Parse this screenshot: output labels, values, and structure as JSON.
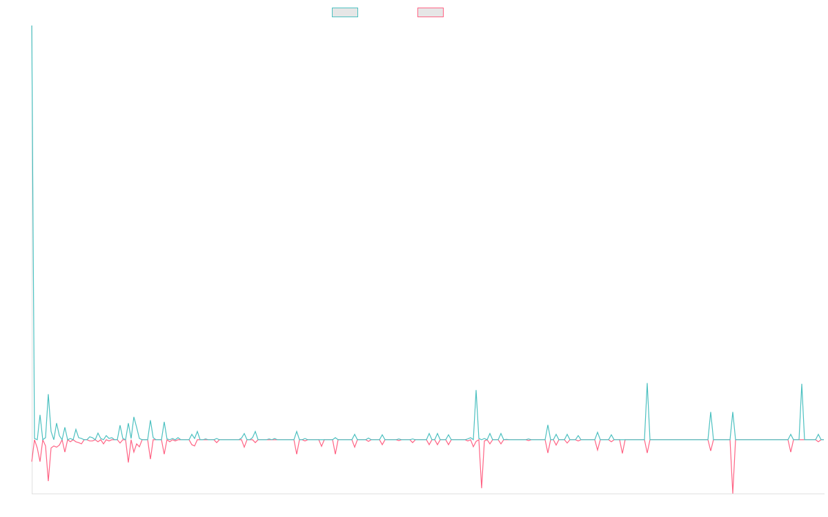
{
  "chart_data": {
    "type": "line",
    "title": "",
    "xlabel": "",
    "ylabel": "",
    "n_points": 288,
    "xlim": [
      0,
      287
    ],
    "ylim": [
      -13,
      100
    ],
    "grid": false,
    "legend_placement": "top-center",
    "series": [
      {
        "name": "",
        "color": "#4bc0c0",
        "points": [
          [
            0,
            100
          ],
          [
            1,
            0.3
          ],
          [
            3,
            6
          ],
          [
            5,
            0.5
          ],
          [
            6,
            11
          ],
          [
            7,
            2
          ],
          [
            9,
            4
          ],
          [
            10,
            1
          ],
          [
            12,
            3
          ],
          [
            14,
            0.3
          ],
          [
            16,
            2.5
          ],
          [
            17,
            0.5
          ],
          [
            18,
            0.3
          ],
          [
            21,
            0.7
          ],
          [
            22,
            0.5
          ],
          [
            24,
            1.6
          ],
          [
            25,
            0.3
          ],
          [
            27,
            1
          ],
          [
            28,
            0.3
          ],
          [
            29,
            0.5
          ],
          [
            32,
            3.5
          ],
          [
            33,
            0.3
          ],
          [
            35,
            4
          ],
          [
            36,
            0.3
          ],
          [
            37,
            5.5
          ],
          [
            38,
            3
          ],
          [
            39,
            0.3
          ],
          [
            43,
            4.7
          ],
          [
            44,
            0.5
          ],
          [
            48,
            4.3
          ],
          [
            49,
            0.2
          ],
          [
            51,
            0.3
          ],
          [
            53,
            0.5
          ],
          [
            58,
            1.3
          ],
          [
            59,
            0.3
          ],
          [
            60,
            2
          ],
          [
            63,
            0.2
          ],
          [
            67,
            0.3
          ],
          [
            76,
            0.4
          ],
          [
            77,
            1.5
          ],
          [
            80,
            0.5
          ],
          [
            81,
            2
          ],
          [
            86,
            0.2
          ],
          [
            88,
            0.3
          ],
          [
            96,
            2
          ],
          [
            99,
            0.3
          ],
          [
            110,
            0.5
          ],
          [
            117,
            1.3
          ],
          [
            122,
            0.4
          ],
          [
            127,
            1.2
          ],
          [
            133,
            0.2
          ],
          [
            138,
            0.2
          ],
          [
            144,
            1.5
          ],
          [
            147,
            1.5
          ],
          [
            151,
            1.2
          ],
          [
            158,
            0.2
          ],
          [
            159,
            0.5
          ],
          [
            161,
            12
          ],
          [
            162,
            0.3
          ],
          [
            164,
            0.3
          ],
          [
            166,
            1.5
          ],
          [
            170,
            1.5
          ],
          [
            172,
            0.1
          ],
          [
            180,
            0.2
          ],
          [
            187,
            3.6
          ],
          [
            190,
            1.3
          ],
          [
            194,
            1.3
          ],
          [
            198,
            1
          ],
          [
            205,
            1.8
          ],
          [
            210,
            1.2
          ],
          [
            223,
            13.7
          ],
          [
            246,
            6.7
          ],
          [
            254,
            6.7
          ],
          [
            275,
            1.3
          ],
          [
            279,
            13.5
          ],
          [
            285,
            1.3
          ]
        ]
      },
      {
        "name": "",
        "color": "#ff6384",
        "points": [
          [
            0,
            -5.3
          ],
          [
            2,
            -2
          ],
          [
            3,
            -5.3
          ],
          [
            5,
            -1.5
          ],
          [
            6,
            -10
          ],
          [
            7,
            -2
          ],
          [
            8,
            -1.5
          ],
          [
            9,
            -1.8
          ],
          [
            10,
            -1.3
          ],
          [
            12,
            -3
          ],
          [
            14,
            -0.5
          ],
          [
            16,
            -0.5
          ],
          [
            17,
            -0.7
          ],
          [
            18,
            -1
          ],
          [
            21,
            -0.3
          ],
          [
            22,
            -0.3
          ],
          [
            24,
            -0.5
          ],
          [
            26,
            -1
          ],
          [
            28,
            -0.3
          ],
          [
            32,
            -0.8
          ],
          [
            35,
            -5.5
          ],
          [
            37,
            -3
          ],
          [
            38,
            -1
          ],
          [
            39,
            -1.7
          ],
          [
            43,
            -4.7
          ],
          [
            48,
            -3.5
          ],
          [
            50,
            -0.5
          ],
          [
            52,
            -0.3
          ],
          [
            58,
            -1.2
          ],
          [
            59,
            -1.5
          ],
          [
            67,
            -0.7
          ],
          [
            77,
            -1.8
          ],
          [
            81,
            -0.7
          ],
          [
            96,
            -3.5
          ],
          [
            99,
            -0.3
          ],
          [
            105,
            -1.6
          ],
          [
            110,
            -3.5
          ],
          [
            117,
            -1.8
          ],
          [
            122,
            -0.4
          ],
          [
            127,
            -1.2
          ],
          [
            133,
            -0.2
          ],
          [
            138,
            -0.7
          ],
          [
            144,
            -1.2
          ],
          [
            147,
            -1.2
          ],
          [
            151,
            -1.2
          ],
          [
            158,
            -0.3
          ],
          [
            160,
            -1.7
          ],
          [
            161,
            -0.4
          ],
          [
            163,
            -11.7
          ],
          [
            164,
            -0.3
          ],
          [
            166,
            -1
          ],
          [
            170,
            -1
          ],
          [
            180,
            -0.2
          ],
          [
            187,
            -3.2
          ],
          [
            190,
            -1.3
          ],
          [
            194,
            -0.8
          ],
          [
            198,
            -0.3
          ],
          [
            205,
            -2.5
          ],
          [
            210,
            -0.5
          ],
          [
            214,
            -3.3
          ],
          [
            223,
            -3.2
          ],
          [
            246,
            -2.7
          ],
          [
            254,
            -13
          ],
          [
            275,
            -3
          ],
          [
            285,
            -0.5
          ]
        ]
      }
    ]
  },
  "legend": {
    "items": [
      {
        "label": "",
        "color": "#4bc0c0"
      },
      {
        "label": "",
        "color": "#ff6384"
      }
    ]
  }
}
